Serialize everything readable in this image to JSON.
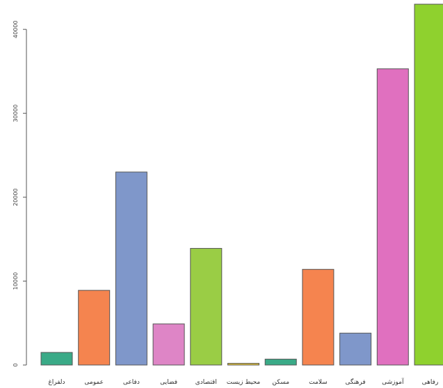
{
  "chart_data": {
    "type": "bar",
    "categories": [
      "دلفراغ",
      "عمومی",
      "دفاعی",
      "فضایی",
      "اقتصادی",
      "محیط زیست",
      "مسکن",
      "سلامت",
      "فرهنگی",
      "آموزشی",
      "رفاهی"
    ],
    "values": [
      1500,
      8900,
      23000,
      4900,
      13900,
      200,
      700,
      11400,
      3800,
      35300,
      43000
    ],
    "colors": [
      "#3aaa87",
      "#f5844f",
      "#7f97ca",
      "#de85c6",
      "#9acd45",
      "#e2c23a",
      "#3aaa87",
      "#f5844f",
      "#7f97ca",
      "#e070bf",
      "#8fd12e"
    ],
    "ylim": [
      0,
      43500
    ],
    "yticks": [
      0,
      10000,
      20000,
      30000,
      40000
    ],
    "ytick_labels": [
      "0",
      "10000",
      "20000",
      "30000",
      "40000"
    ],
    "title": "",
    "xlabel": "",
    "ylabel": "",
    "grid": false,
    "legend": "none"
  }
}
